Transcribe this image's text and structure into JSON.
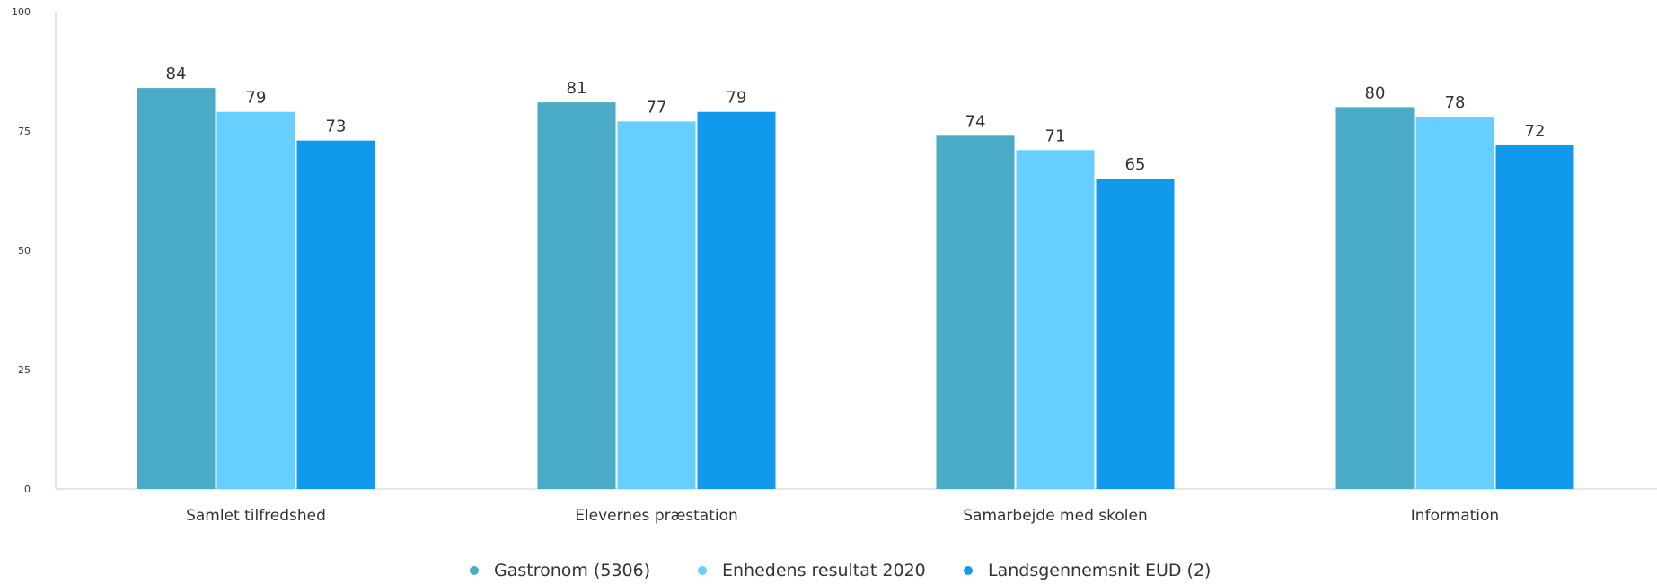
{
  "chart_data": {
    "type": "bar",
    "categories": [
      "Samlet tilfredshed",
      "Elevernes præstation",
      "Samarbejde med skolen",
      "Information"
    ],
    "series": [
      {
        "name": "Gastronom (5306)",
        "values": [
          84,
          81,
          74,
          80
        ],
        "color": "#4aabc6"
      },
      {
        "name": "Enhedens resultat 2020",
        "values": [
          79,
          77,
          71,
          78
        ],
        "color": "#66cfff"
      },
      {
        "name": "Landsgennemsnit EUD (2)",
        "values": [
          73,
          79,
          65,
          72
        ],
        "color": "#1199ee"
      }
    ],
    "yticks": [
      "0",
      "25",
      "50",
      "75",
      "100"
    ],
    "ylim": [
      0,
      100
    ],
    "legend_position": "bottom",
    "grid": false,
    "title": "",
    "xlabel": "",
    "ylabel": ""
  }
}
